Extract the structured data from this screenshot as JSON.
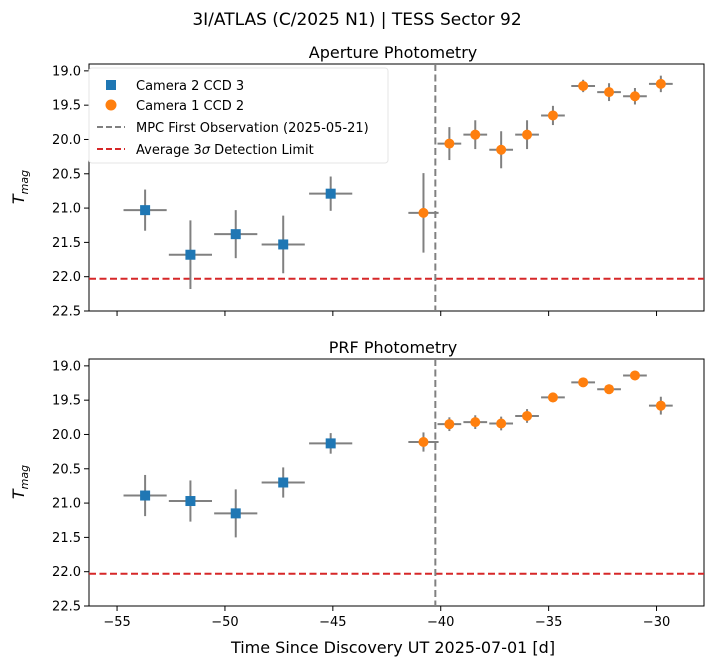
{
  "suptitle": "3I/ATLAS (C/2025 N1) | TESS Sector 92",
  "colors": {
    "camera2": "#1f77b4",
    "camera1": "#ff7f0e",
    "errorbar": "#808080",
    "mpc_line": "#808080",
    "limit_line": "#d62728",
    "legend_border": "#e5e5e5"
  },
  "shared_x": {
    "label": "Time Since Discovery UT 2025-07-01 [d]",
    "ticks": [
      -55,
      -50,
      -45,
      -40,
      -35,
      -30
    ],
    "tick_labels": [
      "−55",
      "−50",
      "−45",
      "−40",
      "−35",
      "−30"
    ],
    "xlim": [
      -56.3,
      -27.8
    ]
  },
  "legend": {
    "placement": "upper-left of top panel",
    "entries": [
      {
        "key": "camera2",
        "label": "Camera 2 CCD 3",
        "marker": "square"
      },
      {
        "key": "camera1",
        "label": "Camera 1 CCD 2",
        "marker": "circle"
      },
      {
        "key": "mpc",
        "label": "MPC First Observation (2025-05-21)",
        "marker": "dashed-gray"
      },
      {
        "key": "limit",
        "label": "Average 3",
        "label_symbol": "σ",
        "label_suffix": " Detection Limit",
        "marker": "dashed-red"
      }
    ]
  },
  "chart_data": [
    {
      "type": "scatter",
      "title": "Aperture Photometry",
      "ylabel_main": "T",
      "ylabel_sub": "mag",
      "ylim": [
        22.5,
        18.9
      ],
      "y_inverted": true,
      "yticks": [
        19.0,
        19.5,
        20.0,
        20.5,
        21.0,
        21.5,
        22.0,
        22.5
      ],
      "ytick_labels": [
        "19.0",
        "19.5",
        "20.0",
        "20.5",
        "21.0",
        "21.5",
        "22.0",
        "22.5"
      ],
      "show_xtick_labels": false,
      "mpc_first_observation_x": -40.25,
      "detection_limit": 22.03,
      "series": [
        {
          "name": "Camera 2 CCD 3",
          "key": "camera2",
          "points": [
            {
              "x": -53.7,
              "y": 21.03,
              "xerr": 1.0,
              "yerr": 0.3
            },
            {
              "x": -51.6,
              "y": 21.68,
              "xerr": 1.0,
              "yerr": 0.5
            },
            {
              "x": -49.5,
              "y": 21.38,
              "xerr": 1.0,
              "yerr": 0.35
            },
            {
              "x": -47.3,
              "y": 21.53,
              "xerr": 1.0,
              "yerr": 0.42
            },
            {
              "x": -45.1,
              "y": 20.79,
              "xerr": 1.0,
              "yerr": 0.25
            }
          ]
        },
        {
          "name": "Camera 1 CCD 2",
          "key": "camera1",
          "points": [
            {
              "x": -40.8,
              "y": 21.07,
              "xerr": 0.7,
              "yerr": 0.58
            },
            {
              "x": -39.6,
              "y": 20.06,
              "xerr": 0.55,
              "yerr": 0.24
            },
            {
              "x": -38.4,
              "y": 19.93,
              "xerr": 0.55,
              "yerr": 0.21
            },
            {
              "x": -37.2,
              "y": 20.15,
              "xerr": 0.55,
              "yerr": 0.27
            },
            {
              "x": -36.0,
              "y": 19.93,
              "xerr": 0.55,
              "yerr": 0.21
            },
            {
              "x": -34.8,
              "y": 19.65,
              "xerr": 0.55,
              "yerr": 0.14
            },
            {
              "x": -33.4,
              "y": 19.22,
              "xerr": 0.55,
              "yerr": 0.09
            },
            {
              "x": -32.2,
              "y": 19.31,
              "xerr": 0.55,
              "yerr": 0.13
            },
            {
              "x": -31.0,
              "y": 19.37,
              "xerr": 0.55,
              "yerr": 0.12
            },
            {
              "x": -29.8,
              "y": 19.19,
              "xerr": 0.55,
              "yerr": 0.12
            }
          ]
        }
      ]
    },
    {
      "type": "scatter",
      "title": "PRF Photometry",
      "ylabel_main": "T",
      "ylabel_sub": "mag",
      "ylim": [
        22.5,
        18.9
      ],
      "y_inverted": true,
      "yticks": [
        19.0,
        19.5,
        20.0,
        20.5,
        21.0,
        21.5,
        22.0,
        22.5
      ],
      "ytick_labels": [
        "19.0",
        "19.5",
        "20.0",
        "20.5",
        "21.0",
        "21.5",
        "22.0",
        "22.5"
      ],
      "show_xtick_labels": true,
      "mpc_first_observation_x": -40.25,
      "detection_limit": 22.03,
      "series": [
        {
          "name": "Camera 2 CCD 3",
          "key": "camera2",
          "points": [
            {
              "x": -53.7,
              "y": 20.89,
              "xerr": 1.0,
              "yerr": 0.3
            },
            {
              "x": -51.6,
              "y": 20.97,
              "xerr": 1.0,
              "yerr": 0.3
            },
            {
              "x": -49.5,
              "y": 21.15,
              "xerr": 1.0,
              "yerr": 0.35
            },
            {
              "x": -47.3,
              "y": 20.7,
              "xerr": 1.0,
              "yerr": 0.22
            },
            {
              "x": -45.1,
              "y": 20.13,
              "xerr": 1.0,
              "yerr": 0.15
            }
          ]
        },
        {
          "name": "Camera 1 CCD 2",
          "key": "camera1",
          "points": [
            {
              "x": -40.8,
              "y": 20.11,
              "xerr": 0.7,
              "yerr": 0.14
            },
            {
              "x": -39.6,
              "y": 19.85,
              "xerr": 0.55,
              "yerr": 0.1
            },
            {
              "x": -38.4,
              "y": 19.82,
              "xerr": 0.55,
              "yerr": 0.1
            },
            {
              "x": -37.2,
              "y": 19.84,
              "xerr": 0.55,
              "yerr": 0.1
            },
            {
              "x": -36.0,
              "y": 19.73,
              "xerr": 0.55,
              "yerr": 0.1
            },
            {
              "x": -34.8,
              "y": 19.46,
              "xerr": 0.55,
              "yerr": 0.07
            },
            {
              "x": -33.4,
              "y": 19.24,
              "xerr": 0.55,
              "yerr": 0.05
            },
            {
              "x": -32.2,
              "y": 19.34,
              "xerr": 0.55,
              "yerr": 0.07
            },
            {
              "x": -31.0,
              "y": 19.14,
              "xerr": 0.55,
              "yerr": 0.04
            },
            {
              "x": -29.8,
              "y": 19.58,
              "xerr": 0.55,
              "yerr": 0.13
            }
          ]
        }
      ]
    }
  ]
}
